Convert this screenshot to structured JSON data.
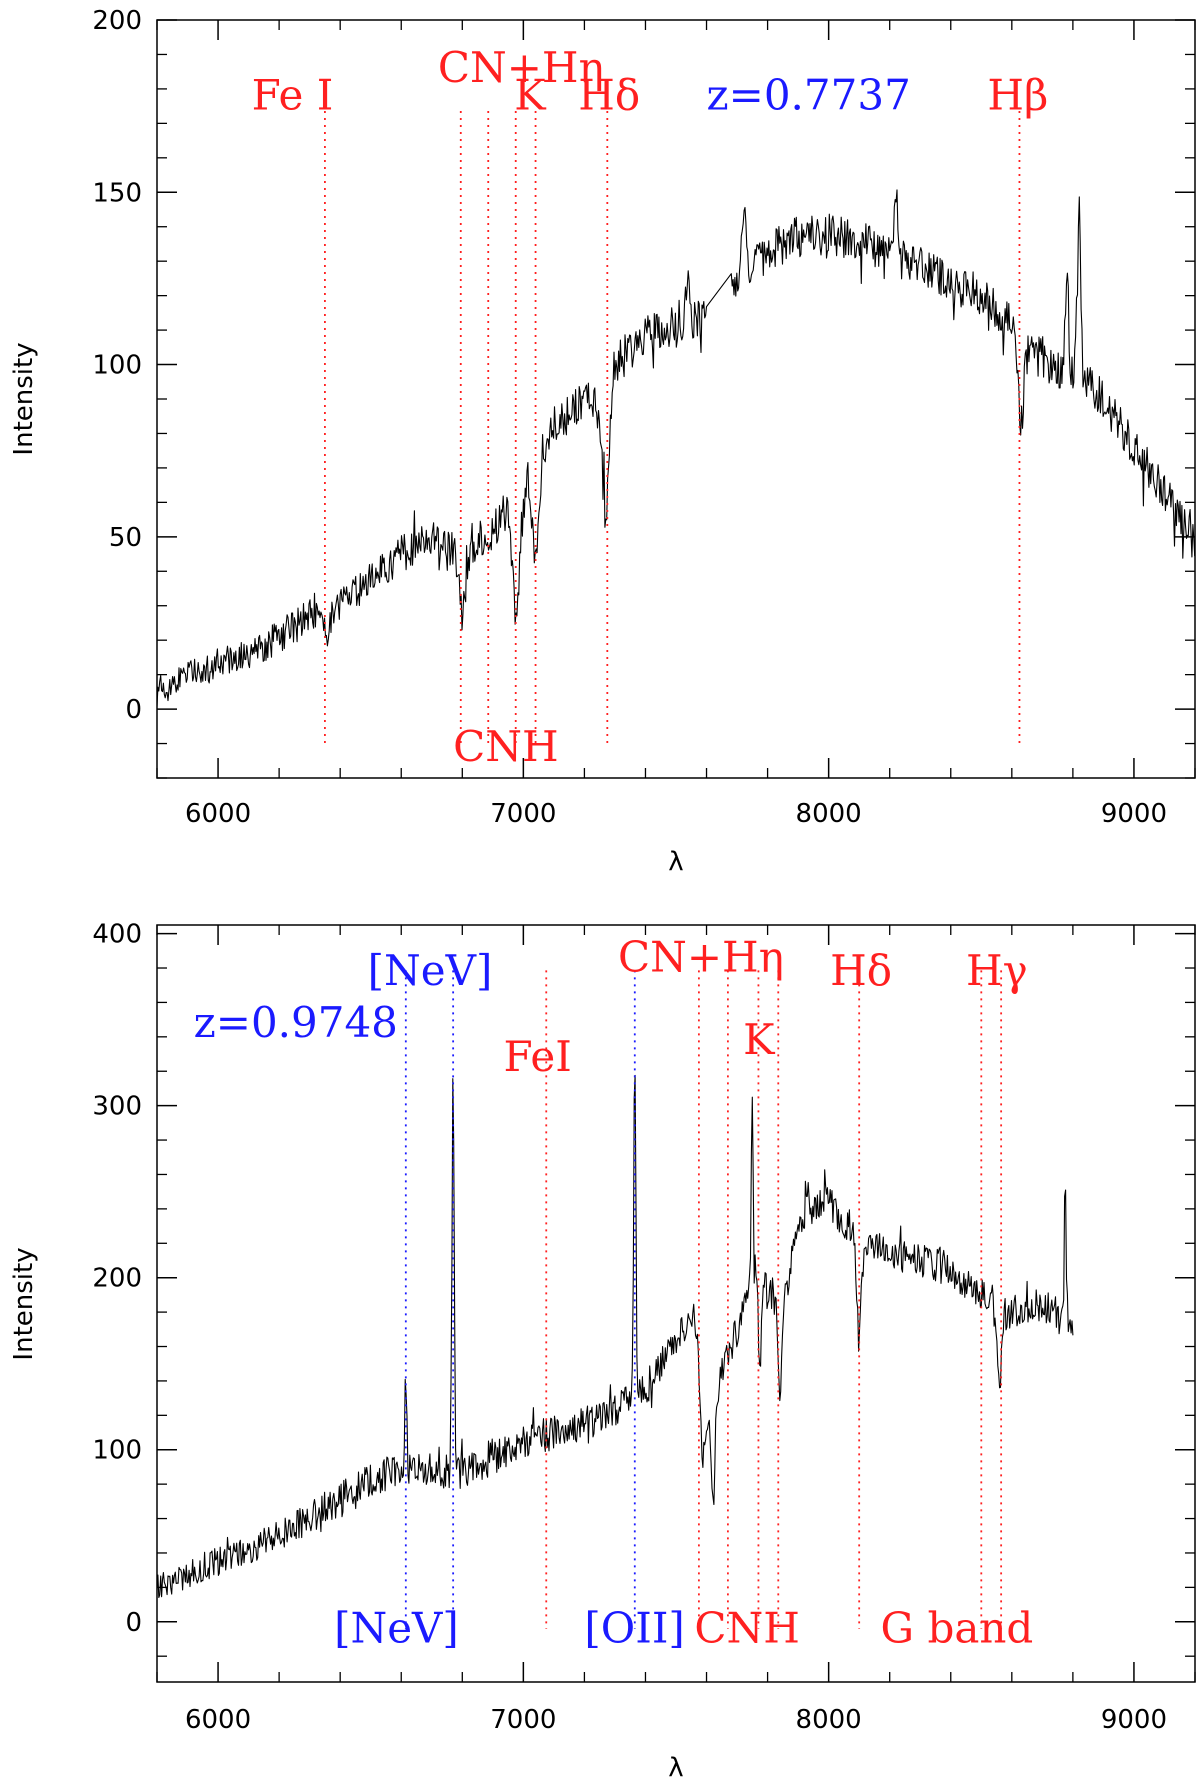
{
  "colors": {
    "emission": "#1a1aff",
    "absorption": "#ff2020",
    "spectrum": "#000000",
    "axis": "#000000"
  },
  "chart_data": [
    {
      "type": "line",
      "title": "",
      "xlabel": "λ",
      "ylabel": "Intensity",
      "xlim": [
        5800,
        9200
      ],
      "ylim": [
        -20,
        200
      ],
      "xticks": [
        6000,
        7000,
        8000,
        9000
      ],
      "xtick_labels": [
        "6000",
        "7000",
        "8000",
        "9000"
      ],
      "yticks": [
        0,
        50,
        100,
        150,
        200
      ],
      "ytick_labels": [
        "0",
        "50",
        "100",
        "150",
        "200"
      ],
      "xminor_step": 200,
      "yminor_step": 10,
      "redshift_label": "z=0.7737",
      "spectrum_smooth": [
        [
          5800,
          5
        ],
        [
          5900,
          10
        ],
        [
          6000,
          13
        ],
        [
          6100,
          16
        ],
        [
          6200,
          21
        ],
        [
          6300,
          27
        ],
        [
          6350,
          27
        ],
        [
          6400,
          30
        ],
        [
          6500,
          38
        ],
        [
          6600,
          45
        ],
        [
          6700,
          50
        ],
        [
          6800,
          45
        ],
        [
          6900,
          52
        ],
        [
          6980,
          60
        ],
        [
          7050,
          70
        ],
        [
          7100,
          82
        ],
        [
          7200,
          90
        ],
        [
          7270,
          85
        ],
        [
          7300,
          100
        ],
        [
          7400,
          108
        ],
        [
          7500,
          112
        ],
        [
          7600,
          113
        ],
        [
          7700,
          124
        ],
        [
          7800,
          133
        ],
        [
          7900,
          137
        ],
        [
          8000,
          138
        ],
        [
          8100,
          136
        ],
        [
          8200,
          132
        ],
        [
          8300,
          128
        ],
        [
          8400,
          124
        ],
        [
          8500,
          120
        ],
        [
          8600,
          112
        ],
        [
          8700,
          100
        ],
        [
          8800,
          98
        ],
        [
          8900,
          90
        ],
        [
          9000,
          76
        ],
        [
          9100,
          63
        ],
        [
          9200,
          48
        ]
      ],
      "spectrum_features": [
        {
          "x": 6355,
          "depth": -10,
          "width": 14
        },
        {
          "x": 6800,
          "depth": -18,
          "width": 14
        },
        {
          "x": 6977,
          "depth": -32,
          "width": 16
        },
        {
          "x": 7040,
          "depth": -24,
          "width": 14
        },
        {
          "x": 7270,
          "depth": -30,
          "width": 14
        },
        {
          "x": 8630,
          "depth": -25,
          "width": 14
        },
        {
          "x": 7540,
          "depth": 12,
          "width": 10
        },
        {
          "x": 7720,
          "depth": 20,
          "width": 10
        },
        {
          "x": 8220,
          "depth": 20,
          "width": 8
        },
        {
          "x": 8780,
          "depth": 28,
          "width": 8
        },
        {
          "x": 8820,
          "depth": 48,
          "width": 8
        }
      ],
      "spectrum_noise": 6,
      "spectrum_gap": [
        7600,
        7680
      ],
      "lines": [
        {
          "x": 6350,
          "kind": "absorption"
        },
        {
          "x": 6795,
          "kind": "absorption"
        },
        {
          "x": 6885,
          "kind": "absorption"
        },
        {
          "x": 6975,
          "kind": "absorption"
        },
        {
          "x": 7040,
          "kind": "absorption"
        },
        {
          "x": 7275,
          "kind": "absorption"
        },
        {
          "x": 8625,
          "kind": "absorption"
        }
      ],
      "labels": [
        {
          "text": "Fe  I",
          "x": 6110,
          "y": 174,
          "kind": "absorption"
        },
        {
          "text": "CN+Hη",
          "x": 6720,
          "y": 182,
          "kind": "absorption"
        },
        {
          "text": "K",
          "x": 6970,
          "y": 174,
          "kind": "absorption"
        },
        {
          "text": "Hδ",
          "x": 7180,
          "y": 174,
          "kind": "absorption"
        },
        {
          "text": "z=0.7737",
          "x": 7600,
          "y": 174,
          "kind": "emission"
        },
        {
          "text": "Hβ",
          "x": 8520,
          "y": 174,
          "kind": "absorption"
        },
        {
          "text": "CNH",
          "x": 6770,
          "y": -15,
          "kind": "absorption"
        }
      ]
    },
    {
      "type": "line",
      "title": "",
      "xlabel": "λ",
      "ylabel": "Intensity",
      "xlim": [
        5800,
        9200
      ],
      "ylim": [
        -35,
        405
      ],
      "xticks": [
        6000,
        7000,
        8000,
        9000
      ],
      "xtick_labels": [
        "6000",
        "7000",
        "8000",
        "9000"
      ],
      "yticks": [
        0,
        100,
        200,
        300,
        400
      ],
      "ytick_labels": [
        "0",
        "100",
        "200",
        "300",
        "400"
      ],
      "xminor_step": 200,
      "yminor_step": 20,
      "redshift_label": "z=0.9748",
      "spectrum_smooth": [
        [
          5800,
          20
        ],
        [
          5900,
          28
        ],
        [
          6000,
          35
        ],
        [
          6100,
          42
        ],
        [
          6200,
          50
        ],
        [
          6300,
          60
        ],
        [
          6400,
          72
        ],
        [
          6500,
          82
        ],
        [
          6600,
          90
        ],
        [
          6700,
          88
        ],
        [
          6800,
          86
        ],
        [
          6900,
          95
        ],
        [
          7000,
          105
        ],
        [
          7100,
          110
        ],
        [
          7200,
          115
        ],
        [
          7300,
          122
        ],
        [
          7400,
          135
        ],
        [
          7500,
          165
        ],
        [
          7560,
          180
        ],
        [
          7600,
          105
        ],
        [
          7650,
          145
        ],
        [
          7700,
          170
        ],
        [
          7760,
          210
        ],
        [
          7800,
          195
        ],
        [
          7850,
          180
        ],
        [
          7900,
          235
        ],
        [
          8000,
          245
        ],
        [
          8100,
          220
        ],
        [
          8200,
          215
        ],
        [
          8300,
          210
        ],
        [
          8400,
          205
        ],
        [
          8500,
          190
        ],
        [
          8600,
          180
        ],
        [
          8700,
          185
        ],
        [
          8800,
          175
        ]
      ],
      "spectrum_features": [
        {
          "x": 6615,
          "depth": 55,
          "width": 4
        },
        {
          "x": 6770,
          "depth": 230,
          "width": 5
        },
        {
          "x": 7365,
          "depth": 200,
          "width": 5
        },
        {
          "x": 7585,
          "depth": -35,
          "width": 10
        },
        {
          "x": 7622,
          "depth": -50,
          "width": 8
        },
        {
          "x": 7775,
          "depth": -65,
          "width": 6
        },
        {
          "x": 7840,
          "depth": -45,
          "width": 8
        },
        {
          "x": 8100,
          "depth": -45,
          "width": 12
        },
        {
          "x": 8560,
          "depth": -40,
          "width": 12
        },
        {
          "x": 7750,
          "depth": 110,
          "width": 4
        },
        {
          "x": 8775,
          "depth": 80,
          "width": 4
        }
      ],
      "spectrum_noise": 10,
      "spectrum_gap": null,
      "lines": [
        {
          "x": 6615,
          "kind": "emission"
        },
        {
          "x": 6770,
          "kind": "emission"
        },
        {
          "x": 7075,
          "kind": "absorption"
        },
        {
          "x": 7365,
          "kind": "emission"
        },
        {
          "x": 7575,
          "kind": "absorption"
        },
        {
          "x": 7670,
          "kind": "absorption"
        },
        {
          "x": 7770,
          "kind": "absorption"
        },
        {
          "x": 7835,
          "kind": "absorption"
        },
        {
          "x": 8100,
          "kind": "absorption"
        },
        {
          "x": 8500,
          "kind": "absorption"
        },
        {
          "x": 8565,
          "kind": "absorption"
        }
      ],
      "labels": [
        {
          "text": "z=0.9748",
          "x": 5920,
          "y": 340,
          "kind": "emission"
        },
        {
          "text": "[NeV]",
          "x": 6490,
          "y": 370,
          "kind": "emission"
        },
        {
          "text": "FeI",
          "x": 6935,
          "y": 320,
          "kind": "absorption"
        },
        {
          "text": "CN+Hη",
          "x": 7310,
          "y": 378,
          "kind": "absorption"
        },
        {
          "text": "K",
          "x": 7720,
          "y": 330,
          "kind": "absorption"
        },
        {
          "text": "Hδ",
          "x": 8005,
          "y": 370,
          "kind": "absorption"
        },
        {
          "text": "Hγ",
          "x": 8450,
          "y": 370,
          "kind": "absorption"
        },
        {
          "text": "[NeV]",
          "x": 6380,
          "y": -12,
          "kind": "emission"
        },
        {
          "text": "[OII]",
          "x": 7200,
          "y": -12,
          "kind": "emission"
        },
        {
          "text": "CNH",
          "x": 7560,
          "y": -12,
          "kind": "absorption"
        },
        {
          "text": "G  band",
          "x": 8170,
          "y": -12,
          "kind": "absorption"
        }
      ]
    }
  ]
}
